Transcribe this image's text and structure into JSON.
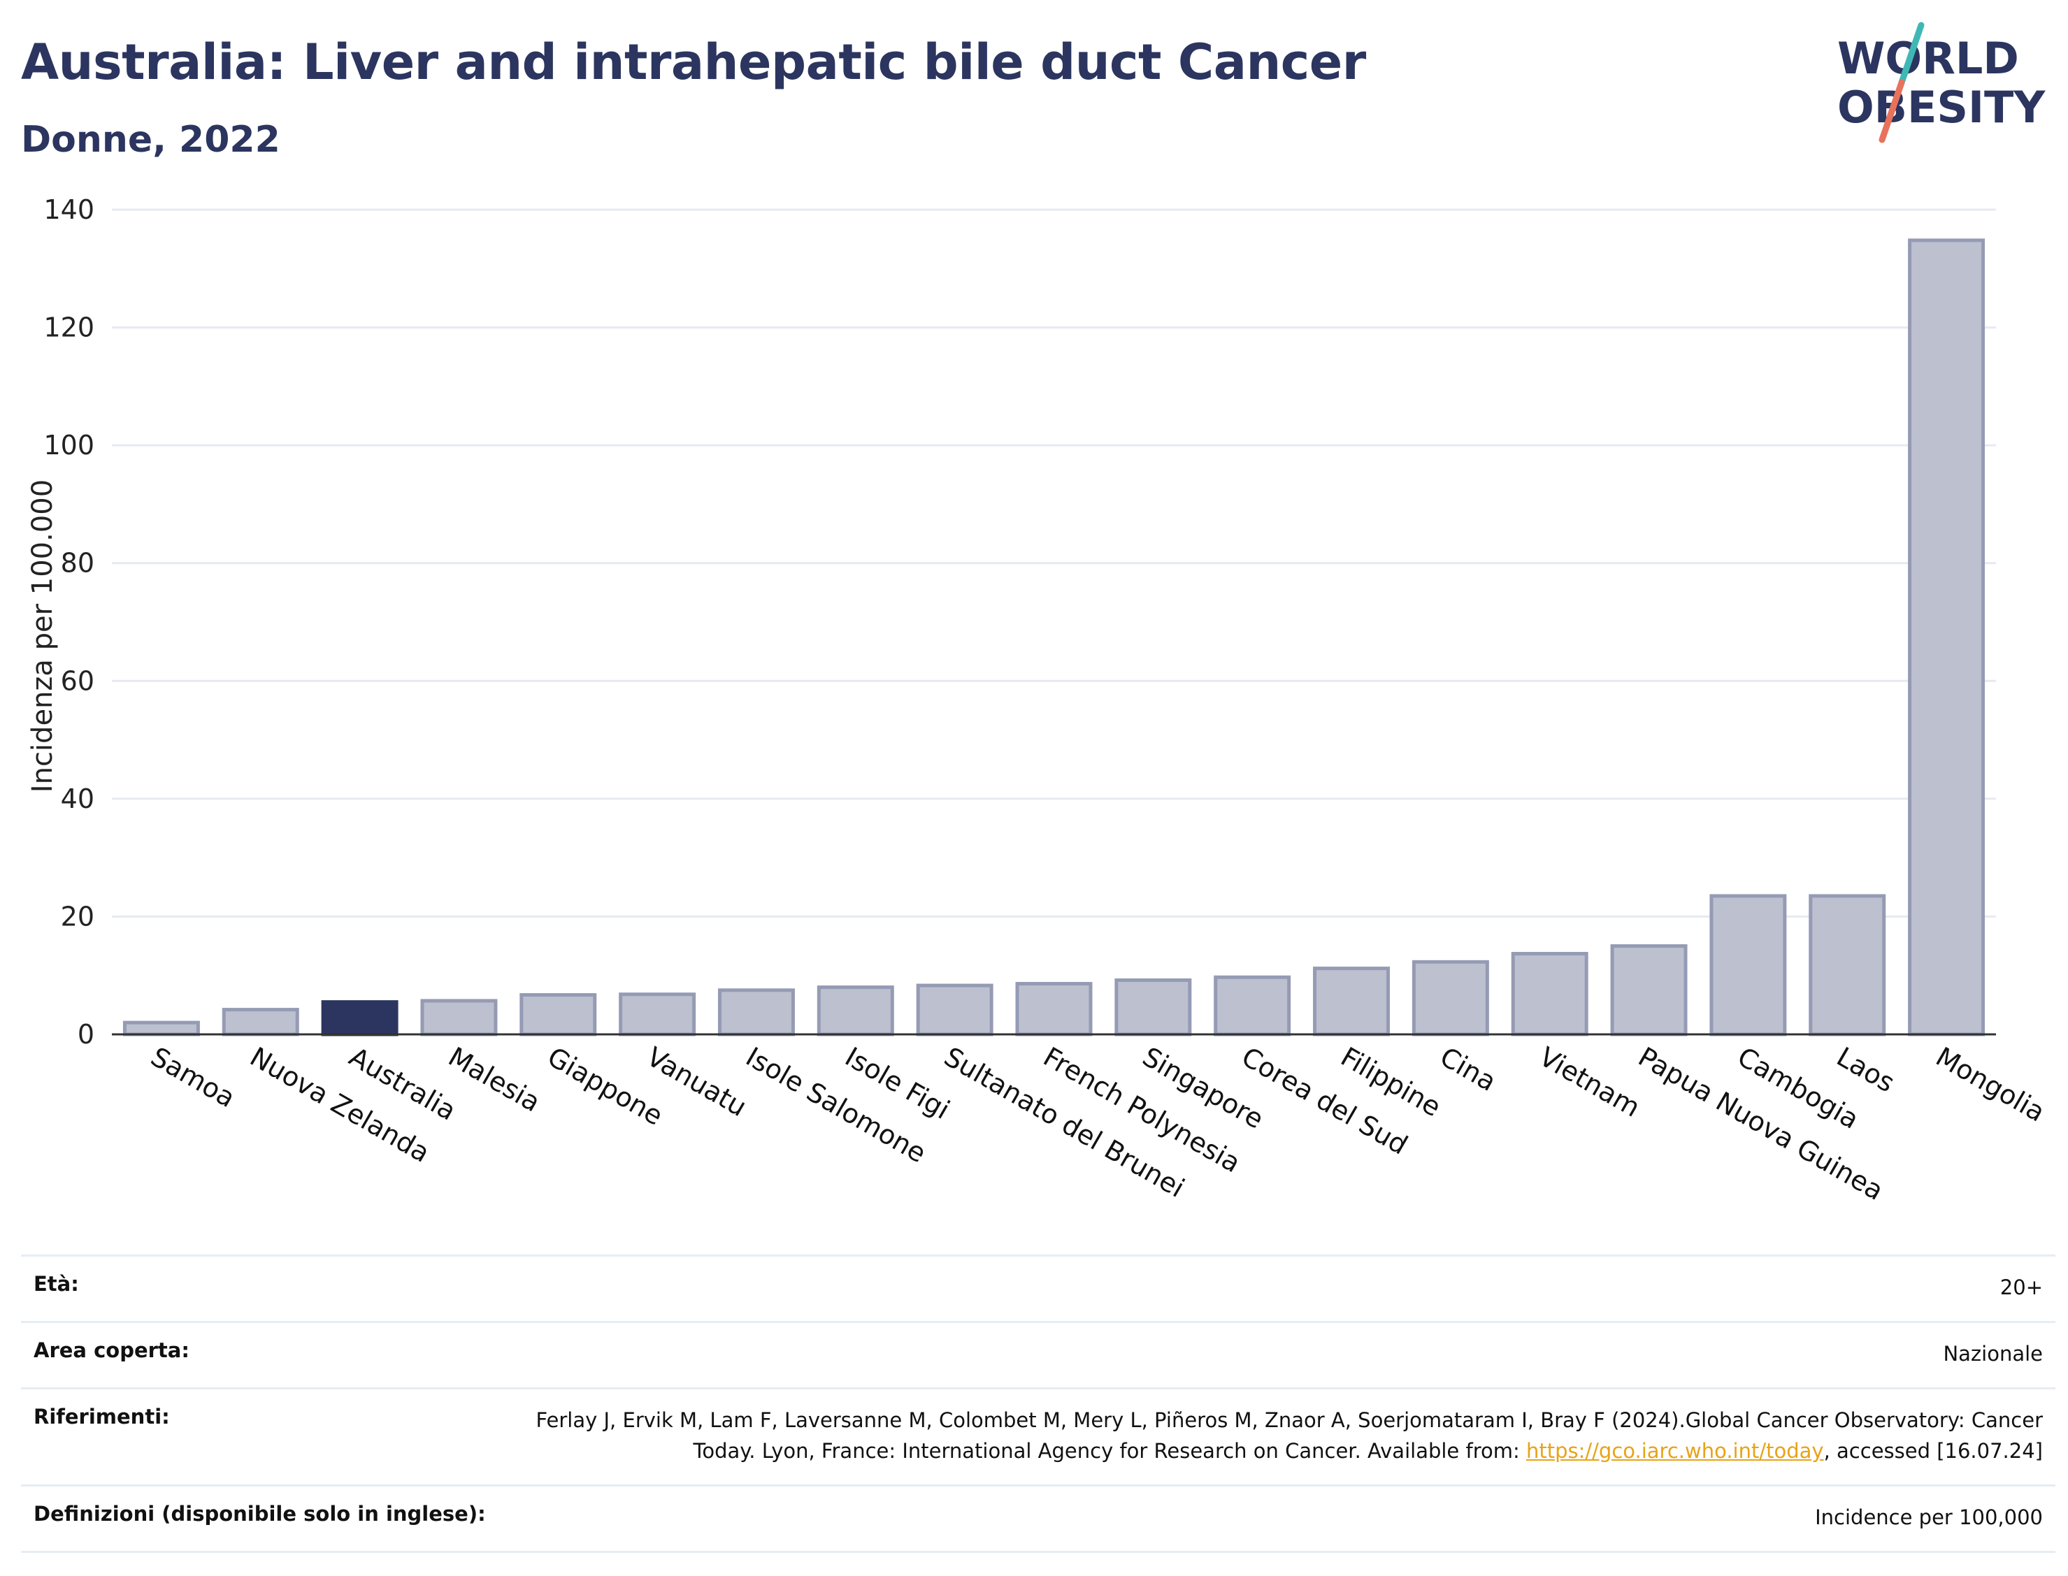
{
  "header": {
    "title": "Australia: Liver and intrahepatic bile duct Cancer",
    "subtitle": "Donne, 2022"
  },
  "logo": {
    "line1": "WORLD",
    "line2": "OBESITY",
    "colors": {
      "text": "#2b355f",
      "slash_teal": "#3fb8b5",
      "slash_coral": "#e8725c"
    }
  },
  "chart_data": {
    "type": "bar",
    "title": "Australia: Liver and intrahepatic bile duct Cancer",
    "subtitle": "Donne, 2022",
    "xlabel": "",
    "ylabel": "Incidenza per 100.000",
    "ylim": [
      0,
      140
    ],
    "yticks": [
      0,
      20,
      40,
      60,
      80,
      100,
      120,
      140
    ],
    "grid": true,
    "categories": [
      "Samoa",
      "Nuova Zelanda",
      "Australia",
      "Malesia",
      "Giappone",
      "Vanuatu",
      "Isole Salomone",
      "Isole Figi",
      "Sultanato del Brunei",
      "French Polynesia",
      "Singapore",
      "Corea del Sud",
      "Filippine",
      "Cina",
      "Vietnam",
      "Papua Nuova Guinea",
      "Cambogia",
      "Laos",
      "Mongolia"
    ],
    "values": [
      2.0,
      4.2,
      5.5,
      5.7,
      6.7,
      6.8,
      7.5,
      8.0,
      8.3,
      8.6,
      9.2,
      9.7,
      11.2,
      12.3,
      13.7,
      15.0,
      23.5,
      23.5,
      134.8
    ],
    "highlight": "Australia",
    "colors": {
      "highlight": "#2b355f",
      "bar_fill": "#bcc0cf",
      "bar_stroke": "#959bb4",
      "grid": "#e6eaf0",
      "axis": "#333333"
    }
  },
  "info": {
    "eta_label": "Età:",
    "eta_value": "20+",
    "area_label": "Area coperta:",
    "area_value": "Nazionale",
    "ref_label": "Riferimenti:",
    "ref_text_1": "Ferlay J, Ervik M, Lam F, Laversanne M, Colombet M, Mery L, Piñeros M, Znaor A, Soerjomataram I, Bray F (2024).Global Cancer Observatory: Cancer Today. Lyon, France: International Agency for Research on Cancer. Available from: ",
    "ref_link": "https://gco.iarc.who.int/today",
    "ref_text_2": ", accessed [16.07.24]",
    "def_label": "Definizioni (disponibile solo in inglese):",
    "def_value": "Incidence per 100,000"
  }
}
